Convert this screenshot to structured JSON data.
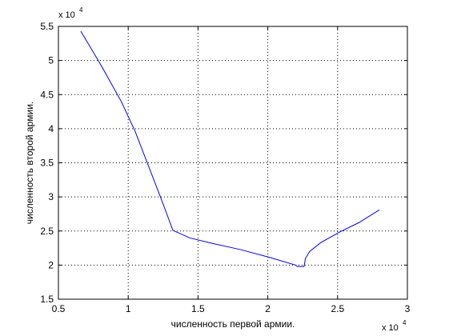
{
  "chart_data": {
    "type": "line",
    "xlabel": "численность первой армии.",
    "ylabel": "численность второй армии.",
    "x_multiplier": {
      "base": "x 10",
      "exponent": "4"
    },
    "y_multiplier": {
      "base": "x 10",
      "exponent": "4"
    },
    "xlim": [
      5000,
      30000
    ],
    "ylim": [
      15000,
      55000
    ],
    "x_ticks": [
      5000,
      10000,
      15000,
      20000,
      25000,
      30000
    ],
    "x_tick_labels": [
      "0.5",
      "1",
      "1.5",
      "2",
      "2.5",
      "3"
    ],
    "y_ticks": [
      15000,
      20000,
      25000,
      30000,
      35000,
      40000,
      45000,
      50000,
      55000
    ],
    "y_tick_labels": [
      "1.5",
      "2",
      "2.5",
      "3",
      "3.5",
      "4",
      "4.5",
      "5",
      "5.5"
    ],
    "grid": true,
    "series": [
      {
        "color": "#0000ff",
        "x": [
          6600,
          8000,
          9500,
          10500,
          12400,
          13200,
          14400,
          16000,
          18000,
          20000,
          22000,
          22100,
          22600,
          22700,
          23000,
          23800,
          25200,
          26500,
          28000
        ],
        "y": [
          54300,
          49500,
          44000,
          39600,
          29500,
          25100,
          24000,
          23200,
          22300,
          21200,
          20000,
          19800,
          19800,
          21000,
          22000,
          23300,
          24900,
          26200,
          28100
        ]
      }
    ]
  }
}
